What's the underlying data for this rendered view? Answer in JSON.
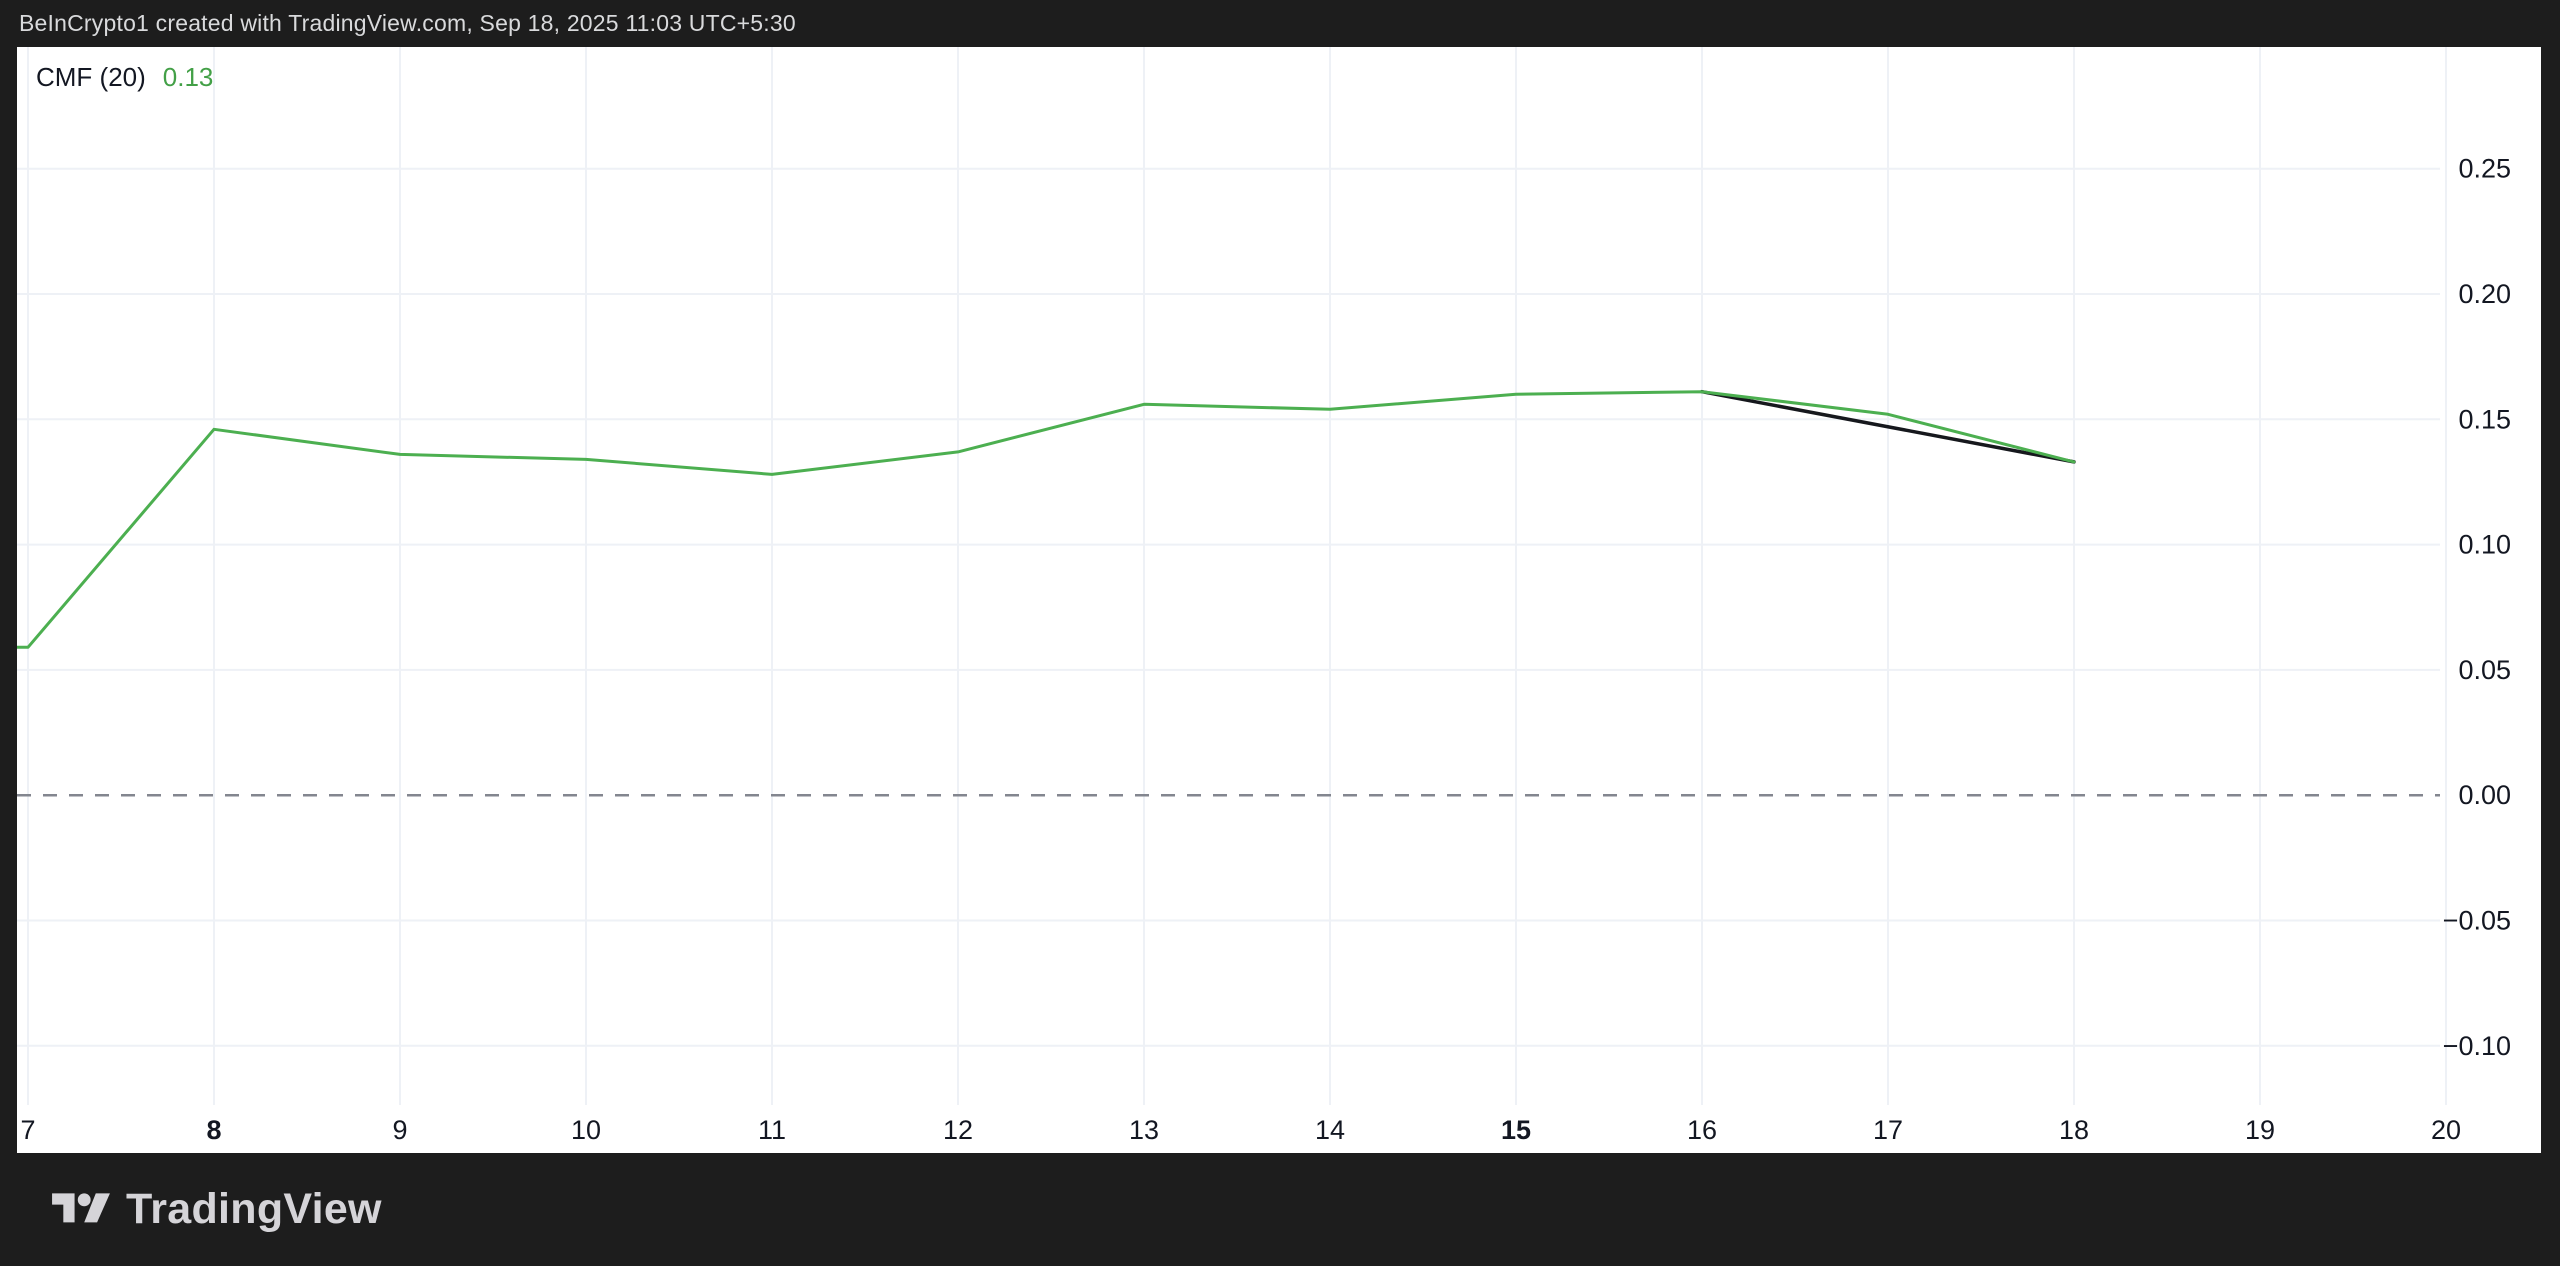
{
  "header": {
    "attribution": "BeInCrypto1 created with TradingView.com, Sep 18, 2025 11:03 UTC+5:30"
  },
  "indicator": {
    "name": "CMF (20)",
    "value": "0.13",
    "value_color": "#43a047"
  },
  "footer": {
    "brand": "TradingView"
  },
  "colors": {
    "background": "#1d1d1d",
    "panel": "#ffffff",
    "grid": "#eef1f6",
    "axis_text": "#131722",
    "zero_dash": "#83868f",
    "cmf_line": "#4caf50",
    "trend_line": "#16181d"
  },
  "chart_data": {
    "type": "line",
    "title": "CMF (20)",
    "xlabel": "",
    "ylabel": "",
    "grid": true,
    "legend_position": "none",
    "x_range": [
      6.94,
      20.51
    ],
    "ylim": [
      -0.124,
      0.299
    ],
    "zero_line_style": "dashed",
    "x_ticks": [
      {
        "label": "7",
        "day": 7,
        "bold": false
      },
      {
        "label": "8",
        "day": 8,
        "bold": true
      },
      {
        "label": "9",
        "day": 9,
        "bold": false
      },
      {
        "label": "10",
        "day": 10,
        "bold": false
      },
      {
        "label": "11",
        "day": 11,
        "bold": false
      },
      {
        "label": "12",
        "day": 12,
        "bold": false
      },
      {
        "label": "13",
        "day": 13,
        "bold": false
      },
      {
        "label": "14",
        "day": 14,
        "bold": false
      },
      {
        "label": "15",
        "day": 15,
        "bold": true
      },
      {
        "label": "16",
        "day": 16,
        "bold": false
      },
      {
        "label": "17",
        "day": 17,
        "bold": false
      },
      {
        "label": "18",
        "day": 18,
        "bold": false
      },
      {
        "label": "19",
        "day": 19,
        "bold": false
      },
      {
        "label": "20",
        "day": 20,
        "bold": false
      }
    ],
    "y_ticks": [
      {
        "label": "0.25",
        "value": 0.25
      },
      {
        "label": "0.20",
        "value": 0.2
      },
      {
        "label": "0.15",
        "value": 0.15
      },
      {
        "label": "0.10",
        "value": 0.1
      },
      {
        "label": "0.05",
        "value": 0.05
      },
      {
        "label": "0.00",
        "value": 0.0
      },
      {
        "label": "−0.05",
        "value": -0.05
      },
      {
        "label": "−0.10",
        "value": -0.1
      }
    ],
    "series": [
      {
        "name": "CMF (20)",
        "color": "#4caf50",
        "width": 3,
        "leadin_to_left_edge": true,
        "x": [
          7,
          8,
          9,
          10,
          11,
          12,
          13,
          14,
          15,
          16,
          17,
          18
        ],
        "values": [
          0.059,
          0.146,
          0.136,
          0.134,
          0.128,
          0.137,
          0.156,
          0.154,
          0.16,
          0.161,
          0.152,
          0.133
        ]
      },
      {
        "name": "trendline",
        "color": "#16181d",
        "width": 3.5,
        "leadin_to_left_edge": false,
        "x": [
          16,
          18
        ],
        "values": [
          0.161,
          0.133
        ]
      }
    ]
  }
}
